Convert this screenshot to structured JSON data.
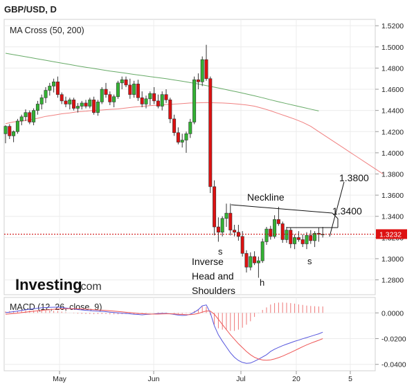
{
  "title": "GBP/USD, D",
  "logo_text": "Investing",
  "logo_suffix": ".com",
  "colors": {
    "bull": "#33b233",
    "bear": "#dd1111",
    "ma50": "#f08080",
    "ma200": "#66aa66",
    "macd": "#5555dd",
    "signal": "#ee5555",
    "hist": "#ee7777",
    "price_line": "#cc0000"
  },
  "chart_data": [
    {
      "type": "candlestick",
      "title": "MA Cross (50, 200)",
      "ylim": [
        1.266,
        1.526
      ],
      "y_ticks": [
        "1.5200",
        "1.5000",
        "1.4800",
        "1.4600",
        "1.4400",
        "1.4200",
        "1.4000",
        "1.3800",
        "1.3600",
        "1.3400",
        "1.3200",
        "1.3000",
        "1.2800"
      ],
      "x_ticks": [
        "May",
        "Jun",
        "Jul",
        "20",
        "5"
      ],
      "current_price": "1.3232",
      "ohlc": [
        [
          1.418,
          1.426,
          1.409,
          1.425
        ],
        [
          1.425,
          1.427,
          1.413,
          1.416
        ],
        [
          1.416,
          1.421,
          1.41,
          1.42
        ],
        [
          1.42,
          1.432,
          1.418,
          1.43
        ],
        [
          1.43,
          1.436,
          1.426,
          1.434
        ],
        [
          1.434,
          1.441,
          1.43,
          1.438
        ],
        [
          1.438,
          1.44,
          1.427,
          1.429
        ],
        [
          1.429,
          1.442,
          1.426,
          1.44
        ],
        [
          1.44,
          1.449,
          1.436,
          1.446
        ],
        [
          1.446,
          1.455,
          1.441,
          1.452
        ],
        [
          1.452,
          1.462,
          1.447,
          1.459
        ],
        [
          1.459,
          1.466,
          1.454,
          1.463
        ],
        [
          1.463,
          1.47,
          1.457,
          1.467
        ],
        [
          1.467,
          1.472,
          1.452,
          1.455
        ],
        [
          1.455,
          1.457,
          1.446,
          1.449
        ],
        [
          1.449,
          1.453,
          1.443,
          1.446
        ],
        [
          1.446,
          1.452,
          1.441,
          1.45
        ],
        [
          1.45,
          1.452,
          1.44,
          1.442
        ],
        [
          1.442,
          1.447,
          1.438,
          1.444
        ],
        [
          1.444,
          1.449,
          1.441,
          1.447
        ],
        [
          1.447,
          1.45,
          1.442,
          1.444
        ],
        [
          1.444,
          1.452,
          1.442,
          1.45
        ],
        [
          1.45,
          1.453,
          1.436,
          1.438
        ],
        [
          1.438,
          1.45,
          1.435,
          1.448
        ],
        [
          1.448,
          1.462,
          1.446,
          1.46
        ],
        [
          1.46,
          1.466,
          1.452,
          1.455
        ],
        [
          1.455,
          1.458,
          1.445,
          1.448
        ],
        [
          1.448,
          1.455,
          1.443,
          1.453
        ],
        [
          1.453,
          1.468,
          1.451,
          1.466
        ],
        [
          1.466,
          1.472,
          1.46,
          1.469
        ],
        [
          1.469,
          1.472,
          1.462,
          1.464
        ],
        [
          1.464,
          1.47,
          1.451,
          1.455
        ],
        [
          1.455,
          1.468,
          1.452,
          1.465
        ],
        [
          1.465,
          1.469,
          1.449,
          1.452
        ],
        [
          1.452,
          1.458,
          1.443,
          1.446
        ],
        [
          1.446,
          1.454,
          1.442,
          1.451
        ],
        [
          1.451,
          1.458,
          1.445,
          1.456
        ],
        [
          1.456,
          1.462,
          1.446,
          1.449
        ],
        [
          1.449,
          1.455,
          1.442,
          1.444
        ],
        [
          1.444,
          1.458,
          1.44,
          1.455
        ],
        [
          1.455,
          1.46,
          1.447,
          1.45
        ],
        [
          1.45,
          1.452,
          1.428,
          1.432
        ],
        [
          1.432,
          1.436,
          1.416,
          1.419
        ],
        [
          1.419,
          1.424,
          1.408,
          1.41
        ],
        [
          1.41,
          1.418,
          1.405,
          1.412
        ],
        [
          1.412,
          1.42,
          1.4,
          1.418
        ],
        [
          1.418,
          1.432,
          1.414,
          1.429
        ],
        [
          1.429,
          1.472,
          1.427,
          1.469
        ],
        [
          1.469,
          1.475,
          1.46,
          1.467
        ],
        [
          1.467,
          1.491,
          1.463,
          1.488
        ],
        [
          1.488,
          1.502,
          1.468,
          1.47
        ],
        [
          1.47,
          1.472,
          1.362,
          1.368
        ],
        [
          1.368,
          1.374,
          1.322,
          1.33
        ],
        [
          1.33,
          1.339,
          1.316,
          1.325
        ],
        [
          1.325,
          1.34,
          1.321,
          1.338
        ],
        [
          1.338,
          1.352,
          1.33,
          1.343
        ],
        [
          1.343,
          1.352,
          1.322,
          1.327
        ],
        [
          1.327,
          1.332,
          1.321,
          1.325
        ],
        [
          1.325,
          1.332,
          1.317,
          1.321
        ],
        [
          1.321,
          1.326,
          1.302,
          1.305
        ],
        [
          1.305,
          1.308,
          1.287,
          1.292
        ],
        [
          1.292,
          1.306,
          1.289,
          1.302
        ],
        [
          1.302,
          1.307,
          1.294,
          1.296
        ],
        [
          1.296,
          1.302,
          1.282,
          1.298
        ],
        [
          1.298,
          1.319,
          1.296,
          1.316
        ],
        [
          1.316,
          1.33,
          1.313,
          1.328
        ],
        [
          1.328,
          1.331,
          1.318,
          1.321
        ],
        [
          1.321,
          1.341,
          1.319,
          1.337
        ],
        [
          1.337,
          1.349,
          1.331,
          1.333
        ],
        [
          1.333,
          1.335,
          1.315,
          1.318
        ],
        [
          1.318,
          1.33,
          1.315,
          1.327
        ],
        [
          1.327,
          1.329,
          1.31,
          1.314
        ],
        [
          1.314,
          1.323,
          1.309,
          1.32
        ],
        [
          1.32,
          1.326,
          1.316,
          1.318
        ],
        [
          1.318,
          1.323,
          1.311,
          1.314
        ],
        [
          1.314,
          1.325,
          1.309,
          1.322
        ],
        [
          1.322,
          1.327,
          1.314,
          1.317
        ],
        [
          1.317,
          1.326,
          1.311,
          1.324
        ],
        [
          1.324,
          1.329,
          1.316,
          1.323
        ],
        [
          1.323,
          1.33,
          1.32,
          1.3232
        ]
      ],
      "ma50": [
        1.4275,
        1.4292,
        1.43,
        1.4312,
        1.4326,
        1.4344,
        1.4355,
        1.4368,
        1.4377,
        1.4388,
        1.4393,
        1.44,
        1.4404,
        1.441,
        1.4414,
        1.4423,
        1.4432,
        1.4438,
        1.4445,
        1.445,
        1.4456,
        1.446,
        1.4465,
        1.447,
        1.4472,
        1.4474,
        1.4472,
        1.447,
        1.4466,
        1.446,
        1.4452,
        1.444,
        1.442,
        1.4397,
        1.437,
        1.4345,
        1.4318,
        1.4288,
        1.425,
        1.42,
        1.415,
        1.41,
        1.405,
        1.4,
        1.395,
        1.39,
        1.385,
        1.38
      ],
      "ma200": [
        1.494,
        1.4927,
        1.4914,
        1.4901,
        1.4887,
        1.4874,
        1.486,
        1.4847,
        1.4834,
        1.482,
        1.4808,
        1.4796,
        1.4784,
        1.4772,
        1.4762,
        1.4751,
        1.474,
        1.473,
        1.4719,
        1.471,
        1.47,
        1.4688,
        1.4676,
        1.4663,
        1.465,
        1.4635,
        1.462,
        1.4604,
        1.4588,
        1.4572,
        1.4555,
        1.4538,
        1.452,
        1.45,
        1.4482,
        1.4464,
        1.4447,
        1.443,
        1.4412,
        1.4395
      ],
      "annotations": {
        "neckline": "Neckline",
        "target_high": "1.3800",
        "target_low": "1.3400",
        "left_shoulder": "s",
        "head": "h",
        "right_shoulder": "s",
        "pattern": [
          "Inverse",
          "Head and",
          "Shoulders"
        ]
      }
    },
    {
      "type": "macd",
      "title": "MACD (12, 26, close, 9)",
      "ylim": [
        -0.045,
        0.012
      ],
      "y_ticks": [
        "0.0000",
        "-0.0200",
        "-0.0400"
      ],
      "macd": [
        0.0002,
        0.0006,
        0.001,
        0.0014,
        0.002,
        0.0024,
        0.0028,
        0.0032,
        0.0036,
        0.004,
        0.0042,
        0.0043,
        0.0044,
        0.0045,
        0.0042,
        0.0038,
        0.0034,
        0.003,
        0.0026,
        0.0023,
        0.002,
        0.0018,
        0.0015,
        0.0014,
        0.0012,
        0.001,
        0.0006,
        0.0003,
        0.0,
        -0.0002,
        -0.0004,
        -0.0007,
        -0.001,
        -0.0012,
        -0.0015,
        -0.0012,
        -0.001,
        -0.0008,
        -0.0005,
        -0.0004,
        -0.0004,
        -0.0007,
        -0.0012,
        -0.0017,
        -0.002,
        -0.0018,
        -0.001,
        0.0005,
        0.0025,
        0.0055,
        0.0062,
        0.0,
        -0.01,
        -0.017,
        -0.022,
        -0.0265,
        -0.031,
        -0.0345,
        -0.037,
        -0.0385,
        -0.0392,
        -0.039,
        -0.0376,
        -0.036,
        -0.0343,
        -0.0325,
        -0.03,
        -0.0282,
        -0.0268,
        -0.0255,
        -0.0243,
        -0.0232,
        -0.0221,
        -0.0212,
        -0.0201,
        -0.0192,
        -0.0182,
        -0.0172,
        -0.0163,
        -0.015
      ],
      "signal": [
        -0.001,
        -0.0008,
        -0.0005,
        -0.0002,
        0.0002,
        0.0006,
        0.001,
        0.0013,
        0.0016,
        0.002,
        0.0023,
        0.0025,
        0.0028,
        0.003,
        0.0032,
        0.0033,
        0.0033,
        0.0033,
        0.0032,
        0.0031,
        0.0029,
        0.0027,
        0.0025,
        0.0023,
        0.0021,
        0.0019,
        0.0017,
        0.0014,
        0.0011,
        0.0008,
        0.0005,
        0.0002,
        -0.0001,
        -0.0004,
        -0.0006,
        -0.0008,
        -0.0009,
        -0.0009,
        -0.0009,
        -0.0008,
        -0.0007,
        -0.0007,
        -0.0008,
        -0.001,
        -0.0012,
        -0.0014,
        -0.0013,
        -0.001,
        -0.0004,
        0.0006,
        0.0015,
        0.0014,
        -0.001,
        -0.005,
        -0.009,
        -0.013,
        -0.017,
        -0.0205,
        -0.024,
        -0.027,
        -0.03,
        -0.0325,
        -0.0345,
        -0.0358,
        -0.0366,
        -0.0368,
        -0.0365,
        -0.0358,
        -0.0348,
        -0.0336,
        -0.0322,
        -0.0308,
        -0.0293,
        -0.0278,
        -0.0263,
        -0.0249,
        -0.0236,
        -0.0224,
        -0.0213,
        -0.02
      ],
      "histogram": [
        0.0012,
        0.0014,
        0.0015,
        0.0016,
        0.0018,
        0.0018,
        0.0018,
        0.0019,
        0.002,
        0.002,
        0.0019,
        0.0018,
        0.0016,
        0.0015,
        0.001,
        0.0005,
        0.0001,
        -0.0003,
        -0.0006,
        -0.0008,
        -0.0009,
        -0.0009,
        -0.001,
        -0.0009,
        -0.0009,
        -0.0009,
        -0.0011,
        -0.0011,
        -0.0011,
        -0.001,
        -0.0009,
        -0.0009,
        -0.0009,
        -0.0008,
        -0.0009,
        -0.0004,
        -0.0001,
        0.0001,
        0.0004,
        0.0004,
        0.0003,
        0.0,
        -0.0004,
        -0.0007,
        -0.0008,
        -0.0004,
        0.0003,
        0.0015,
        0.0029,
        0.0049,
        0.0047,
        -0.0014,
        -0.009,
        -0.012,
        -0.013,
        -0.0135,
        -0.014,
        -0.014,
        -0.013,
        -0.0115,
        -0.0092,
        -0.0065,
        -0.0031,
        -0.0002,
        0.0023,
        0.0043,
        0.0065,
        0.0076,
        0.008,
        0.0081,
        0.0079,
        0.0076,
        0.0072,
        0.0066,
        0.0062,
        0.0057,
        0.0054,
        0.0052,
        0.005,
        0.005
      ]
    }
  ]
}
